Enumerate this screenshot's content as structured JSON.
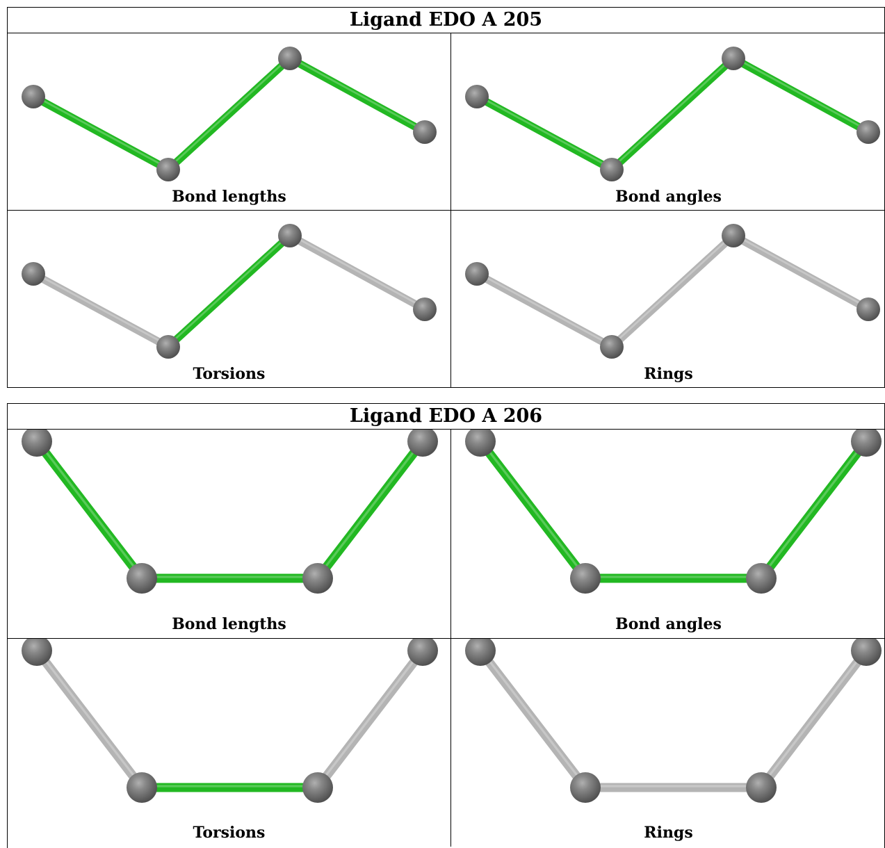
{
  "ligands": [
    {
      "title": "Ligand EDO A 205",
      "panels": [
        {
          "label": "Bond lengths",
          "bonds": [
            "green",
            "green",
            "green"
          ]
        },
        {
          "label": "Bond angles",
          "bonds": [
            "green",
            "green",
            "green"
          ]
        },
        {
          "label": "Torsions",
          "bonds": [
            "grey",
            "green",
            "grey"
          ]
        },
        {
          "label": "Rings",
          "bonds": [
            "grey",
            "grey",
            "grey"
          ]
        }
      ]
    },
    {
      "title": "Ligand EDO A 206",
      "panels": [
        {
          "label": "Bond lengths",
          "bonds": [
            "green",
            "green",
            "green"
          ]
        },
        {
          "label": "Bond angles",
          "bonds": [
            "green",
            "green",
            "green"
          ]
        },
        {
          "label": "Torsions",
          "bonds": [
            "grey",
            "green",
            "grey"
          ]
        },
        {
          "label": "Rings",
          "bonds": [
            "grey",
            "grey",
            "grey"
          ]
        }
      ]
    }
  ],
  "colors": {
    "green_bond": "#22b822",
    "grey_bond": "#b4b4b4",
    "atom": "#6e6e6e"
  }
}
